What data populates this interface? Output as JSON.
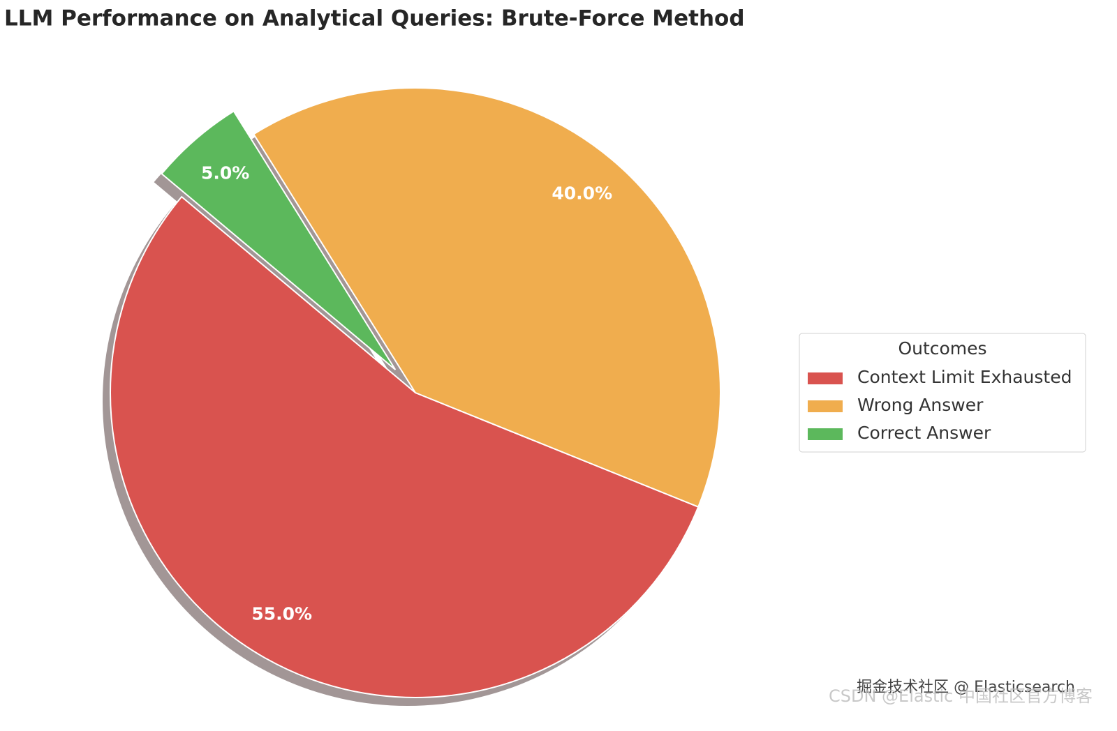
{
  "chart_data": {
    "type": "pie",
    "title": "LLM Performance on Analytical Queries: Brute-Force Method",
    "categories": [
      "Context Limit Exhausted",
      "Wrong Answer",
      "Correct Answer"
    ],
    "values": [
      55,
      40,
      5
    ],
    "value_labels": [
      "55.0%",
      "40.0%",
      "5.0%"
    ],
    "colors": [
      "#d9534f",
      "#f0ad4e",
      "#5cb85c"
    ],
    "explode": [
      0,
      0,
      0.1
    ],
    "shadow": true,
    "legend_title": "Outcomes",
    "legend": "right"
  },
  "watermarks": [
    "掘金技术社区 @ Elasticsearch",
    "CSDN @Elastic 中国社区官方博客"
  ]
}
